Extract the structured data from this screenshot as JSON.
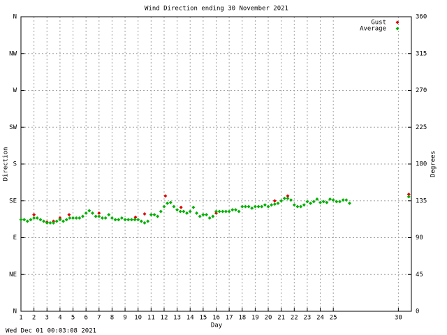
{
  "chart_data": {
    "type": "scatter",
    "title": "Wind Direction ending 30 November 2021",
    "x_label": "Day",
    "y_label": "Direction",
    "y2_label": "Degrees",
    "footer": "Wed Dec 01 00:03:08 2021",
    "xlim": [
      1,
      31
    ],
    "ylim": [
      0,
      360
    ],
    "y2lim": [
      0,
      360
    ],
    "xticks": [
      1,
      2,
      3,
      4,
      5,
      6,
      7,
      8,
      9,
      10,
      11,
      12,
      13,
      14,
      15,
      16,
      17,
      18,
      19,
      20,
      21,
      22,
      23,
      24,
      25,
      30
    ],
    "yticks": [
      {
        "value": 0,
        "label": "N"
      },
      {
        "value": 45,
        "label": "NE"
      },
      {
        "value": 90,
        "label": "E"
      },
      {
        "value": 135,
        "label": "SE"
      },
      {
        "value": 180,
        "label": "S"
      },
      {
        "value": 225,
        "label": "SW"
      },
      {
        "value": 270,
        "label": "W"
      },
      {
        "value": 315,
        "label": "NW"
      },
      {
        "value": 360,
        "label": "N"
      }
    ],
    "y2ticks": [
      0,
      45,
      90,
      135,
      180,
      225,
      270,
      315,
      360
    ],
    "grid": true,
    "legend": "top-right",
    "series": [
      {
        "name": "Gust",
        "color": "#e00000",
        "x": [
          2,
          3,
          3.5,
          4,
          4.7,
          7,
          9.8,
          10.5,
          12.1,
          13.3,
          16,
          20.5,
          21.5,
          30.8
        ],
        "values": [
          118,
          109,
          110,
          114,
          118,
          120,
          115,
          119,
          141,
          127,
          120,
          135,
          141,
          143
        ]
      },
      {
        "name": "Average",
        "color": "#00b000",
        "x": [
          1,
          1.25,
          1.5,
          1.75,
          2,
          2.25,
          2.5,
          2.75,
          3,
          3.25,
          3.5,
          3.75,
          4,
          4.25,
          4.5,
          4.75,
          5,
          5.25,
          5.5,
          5.75,
          6,
          6.25,
          6.5,
          6.75,
          7,
          7.25,
          7.5,
          7.75,
          8,
          8.25,
          8.5,
          8.75,
          9,
          9.25,
          9.5,
          9.75,
          10,
          10.25,
          10.5,
          10.75,
          11,
          11.25,
          11.5,
          11.75,
          12,
          12.25,
          12.5,
          12.75,
          13,
          13.25,
          13.5,
          13.75,
          14,
          14.25,
          14.5,
          14.75,
          15,
          15.25,
          15.5,
          15.75,
          16,
          16.25,
          16.5,
          16.75,
          17,
          17.25,
          17.5,
          17.75,
          18,
          18.25,
          18.5,
          18.75,
          19,
          19.25,
          19.5,
          19.75,
          20,
          20.25,
          20.5,
          20.75,
          21,
          21.25,
          21.5,
          21.75,
          22,
          22.25,
          22.5,
          22.75,
          23,
          23.25,
          23.5,
          23.75,
          24,
          24.25,
          24.5,
          24.75,
          25,
          25.25,
          25.5,
          25.75,
          26,
          26.25,
          30.8
        ],
        "values": [
          112,
          112,
          110,
          112,
          114,
          114,
          112,
          110,
          108,
          108,
          108,
          110,
          112,
          110,
          112,
          114,
          114,
          114,
          114,
          116,
          120,
          123,
          120,
          116,
          116,
          114,
          114,
          118,
          114,
          112,
          112,
          114,
          112,
          112,
          112,
          112,
          112,
          110,
          108,
          110,
          118,
          118,
          116,
          122,
          128,
          132,
          133,
          128,
          124,
          122,
          122,
          120,
          122,
          127,
          120,
          116,
          118,
          118,
          114,
          116,
          122,
          122,
          122,
          122,
          122,
          124,
          124,
          122,
          128,
          128,
          128,
          126,
          128,
          128,
          128,
          130,
          128,
          130,
          131,
          132,
          135,
          138,
          138,
          136,
          130,
          128,
          128,
          130,
          134,
          132,
          134,
          137,
          133,
          134,
          133,
          137,
          136,
          134,
          134,
          136,
          136,
          132,
          140
        ]
      }
    ]
  }
}
